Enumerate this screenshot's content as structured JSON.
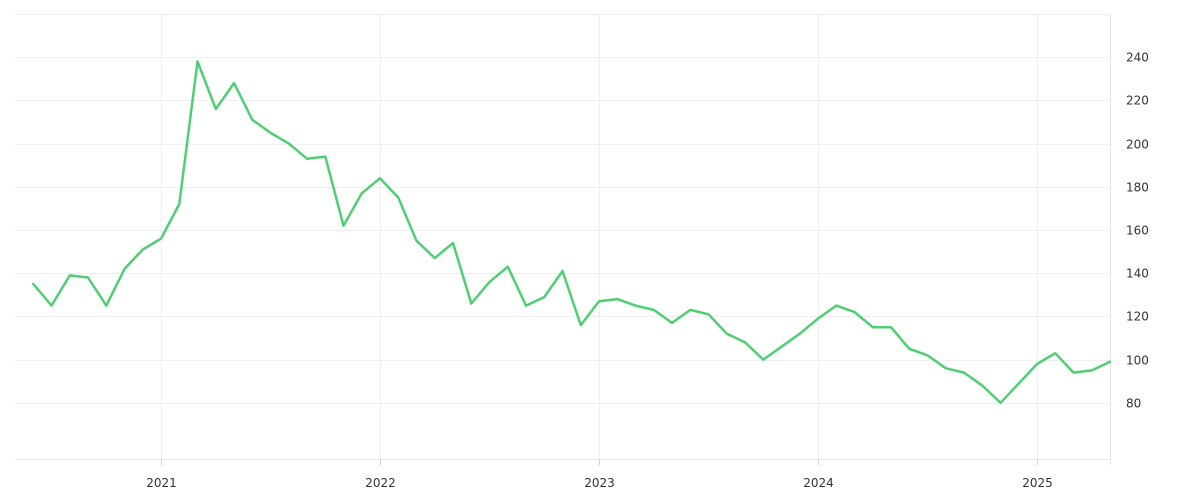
{
  "chart_data": {
    "type": "line",
    "title": "",
    "xlabel": "",
    "ylabel": "",
    "x_ticks": [
      "2021",
      "2022",
      "2023",
      "2024",
      "2025"
    ],
    "y_ticks": [
      80,
      100,
      120,
      140,
      160,
      180,
      200,
      220,
      240
    ],
    "ylim": [
      54,
      260
    ],
    "xlim": [
      "2020-05",
      "2025-05"
    ],
    "y_axis_side": "right",
    "grid": true,
    "legend": "none",
    "series": [
      {
        "color": "#4fce74",
        "x": [
          "2020-06",
          "2020-07",
          "2020-08",
          "2020-09",
          "2020-10",
          "2020-11",
          "2020-12",
          "2021-01",
          "2021-02",
          "2021-03",
          "2021-04",
          "2021-05",
          "2021-06",
          "2021-07",
          "2021-08",
          "2021-09",
          "2021-10",
          "2021-11",
          "2021-12",
          "2022-01",
          "2022-02",
          "2022-03",
          "2022-04",
          "2022-05",
          "2022-06",
          "2022-07",
          "2022-08",
          "2022-09",
          "2022-10",
          "2022-11",
          "2022-12",
          "2023-01",
          "2023-02",
          "2023-03",
          "2023-04",
          "2023-05",
          "2023-06",
          "2023-07",
          "2023-08",
          "2023-09",
          "2023-10",
          "2023-11",
          "2023-12",
          "2024-01",
          "2024-02",
          "2024-03",
          "2024-04",
          "2024-05",
          "2024-06",
          "2024-07",
          "2024-08",
          "2024-09",
          "2024-10",
          "2024-11",
          "2024-12",
          "2025-01",
          "2025-02",
          "2025-03",
          "2025-04",
          "2025-05"
        ],
        "values": [
          135,
          125,
          139,
          138,
          125,
          142,
          151,
          156,
          172,
          238,
          216,
          228,
          211,
          205,
          200,
          193,
          194,
          162,
          177,
          184,
          175,
          155,
          147,
          154,
          126,
          136,
          143,
          125,
          129,
          141,
          116,
          127,
          128,
          125,
          123,
          117,
          123,
          121,
          112,
          108,
          100,
          106,
          112,
          119,
          125,
          122,
          115,
          115,
          105,
          102,
          96,
          94,
          88,
          80,
          89,
          98,
          103,
          94,
          95,
          99
        ]
      }
    ]
  }
}
